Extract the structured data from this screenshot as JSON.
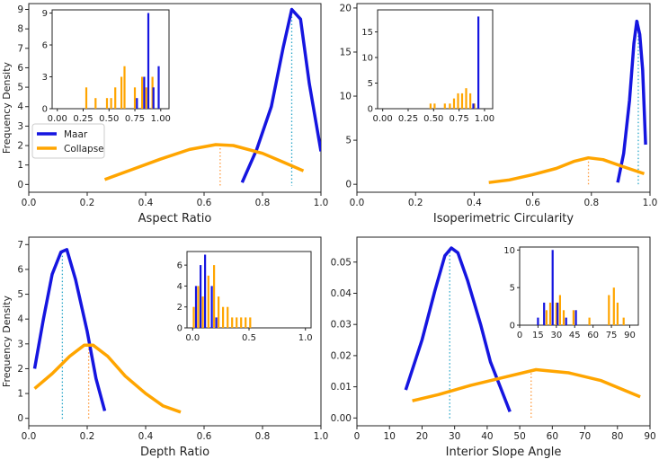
{
  "colors": {
    "maar": "#1515e0",
    "collapse": "#ffa500",
    "axis": "#222222",
    "maar_dotted": "#2aa7c9",
    "collapse_dotted": "#ff9a3c"
  },
  "shared_ylabel": "Frequency Density",
  "chart_data": [
    {
      "id": "aspect",
      "type": "line",
      "xlabel": "Aspect Ratio",
      "xlim": [
        0,
        1
      ],
      "ylim": [
        -0.4,
        9.3
      ],
      "xticks": [
        0.0,
        0.2,
        0.4,
        0.6,
        0.8,
        1.0
      ],
      "xtick_labels": [
        "0.0",
        "0.2",
        "0.4",
        "0.6",
        "0.8",
        "1.0"
      ],
      "yticks": [
        0,
        1,
        2,
        3,
        4,
        5,
        6,
        7,
        8,
        9
      ],
      "ytick_labels": [
        "0",
        "1",
        "2",
        "3",
        "4",
        "5",
        "6",
        "7",
        "8",
        "9"
      ],
      "legend": {
        "position": "middle-left",
        "entries": [
          "Maar",
          "Collapse"
        ]
      },
      "series": [
        {
          "name": "Maar",
          "x": [
            0.73,
            0.78,
            0.83,
            0.87,
            0.9,
            0.93,
            0.96,
            1.0
          ],
          "y": [
            0.1,
            1.8,
            4.0,
            7.0,
            9.0,
            8.5,
            5.2,
            1.7
          ]
        },
        {
          "name": "Collapse",
          "x": [
            0.26,
            0.35,
            0.45,
            0.55,
            0.64,
            0.7,
            0.8,
            0.87,
            0.94
          ],
          "y": [
            0.25,
            0.75,
            1.3,
            1.8,
            2.05,
            2.0,
            1.6,
            1.15,
            0.7
          ]
        }
      ],
      "means": [
        {
          "series": "Maar",
          "x": 0.9,
          "y": 9.0
        },
        {
          "series": "Collapse",
          "x": 0.655,
          "y": 2.05
        }
      ],
      "inset": {
        "xlim": [
          -0.05,
          1.08
        ],
        "ylim": [
          0,
          9.3
        ],
        "xticks": [
          0,
          0.25,
          0.5,
          0.75,
          1.0
        ],
        "xtick_labels": [
          "0.00",
          "0.25",
          "0.50",
          "0.75",
          "1.00"
        ],
        "yticks": [
          0,
          3,
          6,
          9
        ],
        "ytick_labels": [
          "0",
          "3",
          "6",
          "9"
        ],
        "bars": [
          {
            "series": "Collapse",
            "x": 0.28,
            "h": 2
          },
          {
            "series": "Collapse",
            "x": 0.37,
            "h": 1
          },
          {
            "series": "Collapse",
            "x": 0.48,
            "h": 1
          },
          {
            "series": "Collapse",
            "x": 0.52,
            "h": 1
          },
          {
            "series": "Collapse",
            "x": 0.56,
            "h": 2
          },
          {
            "series": "Collapse",
            "x": 0.62,
            "h": 3
          },
          {
            "series": "Collapse",
            "x": 0.65,
            "h": 4
          },
          {
            "series": "Collapse",
            "x": 0.75,
            "h": 2
          },
          {
            "series": "Collapse",
            "x": 0.82,
            "h": 3
          },
          {
            "series": "Collapse",
            "x": 0.86,
            "h": 2
          },
          {
            "series": "Collapse",
            "x": 0.92,
            "h": 3
          },
          {
            "series": "Maar",
            "x": 0.77,
            "h": 1
          },
          {
            "series": "Maar",
            "x": 0.84,
            "h": 3
          },
          {
            "series": "Maar",
            "x": 0.88,
            "h": 9
          },
          {
            "series": "Maar",
            "x": 0.93,
            "h": 2
          },
          {
            "series": "Maar",
            "x": 0.98,
            "h": 4
          }
        ]
      }
    },
    {
      "id": "circularity",
      "type": "line",
      "xlabel": "Isoperimetric Circularity",
      "xlim": [
        0,
        1
      ],
      "ylim": [
        -0.9,
        20.5
      ],
      "xticks": [
        0.0,
        0.2,
        0.4,
        0.6,
        0.8,
        1.0
      ],
      "xtick_labels": [
        "0.0",
        "0.2",
        "0.4",
        "0.6",
        "0.8",
        "1.0"
      ],
      "yticks": [
        0,
        5,
        10,
        15,
        20
      ],
      "ytick_labels": [
        "0",
        "5",
        "10",
        "15",
        "20"
      ],
      "series": [
        {
          "name": "Maar",
          "x": [
            0.89,
            0.91,
            0.93,
            0.945,
            0.955,
            0.965,
            0.975,
            0.985
          ],
          "y": [
            0.2,
            3.5,
            9.5,
            16.0,
            18.5,
            17.0,
            13.0,
            4.5
          ]
        },
        {
          "name": "Collapse",
          "x": [
            0.45,
            0.52,
            0.6,
            0.68,
            0.74,
            0.79,
            0.84,
            0.9,
            0.98
          ],
          "y": [
            0.2,
            0.5,
            1.1,
            1.8,
            2.6,
            3.0,
            2.8,
            2.1,
            1.2
          ]
        }
      ],
      "means": [
        {
          "series": "Maar",
          "x": 0.96,
          "y": 18.5
        },
        {
          "series": "Collapse",
          "x": 0.79,
          "y": 3.0
        }
      ],
      "inset": {
        "xlim": [
          -0.05,
          1.08
        ],
        "ylim": [
          0,
          19.3
        ],
        "xticks": [
          0,
          0.25,
          0.5,
          0.75,
          1.0
        ],
        "xtick_labels": [
          "0.00",
          "0.25",
          "0.50",
          "0.75",
          "1.00"
        ],
        "yticks": [
          0,
          5,
          10,
          15
        ],
        "ytick_labels": [
          "0",
          "5",
          "10",
          "15"
        ],
        "bars": [
          {
            "series": "Collapse",
            "x": 0.47,
            "h": 1
          },
          {
            "series": "Collapse",
            "x": 0.51,
            "h": 1
          },
          {
            "series": "Collapse",
            "x": 0.61,
            "h": 1
          },
          {
            "series": "Collapse",
            "x": 0.66,
            "h": 1
          },
          {
            "series": "Collapse",
            "x": 0.7,
            "h": 2
          },
          {
            "series": "Collapse",
            "x": 0.74,
            "h": 3
          },
          {
            "series": "Collapse",
            "x": 0.78,
            "h": 3
          },
          {
            "series": "Collapse",
            "x": 0.82,
            "h": 4
          },
          {
            "series": "Collapse",
            "x": 0.86,
            "h": 3
          },
          {
            "series": "Collapse",
            "x": 0.9,
            "h": 1
          },
          {
            "series": "Maar",
            "x": 0.89,
            "h": 1
          },
          {
            "series": "Maar",
            "x": 0.94,
            "h": 18
          }
        ]
      }
    },
    {
      "id": "depth",
      "type": "line",
      "xlabel": "Depth Ratio",
      "xlim": [
        0,
        1
      ],
      "ylim": [
        -0.3,
        7.3
      ],
      "xticks": [
        0.0,
        0.2,
        0.4,
        0.6,
        0.8,
        1.0
      ],
      "xtick_labels": [
        "0.0",
        "0.2",
        "0.4",
        "0.6",
        "0.8",
        "1.0"
      ],
      "yticks": [
        0,
        1,
        2,
        3,
        4,
        5,
        6,
        7
      ],
      "ytick_labels": [
        "0",
        "1",
        "2",
        "3",
        "4",
        "5",
        "6",
        "7"
      ],
      "series": [
        {
          "name": "Maar",
          "x": [
            0.02,
            0.05,
            0.08,
            0.11,
            0.13,
            0.16,
            0.2,
            0.23,
            0.26
          ],
          "y": [
            2.0,
            4.0,
            5.8,
            6.7,
            6.8,
            5.6,
            3.5,
            1.6,
            0.3
          ]
        },
        {
          "name": "Collapse",
          "x": [
            0.02,
            0.08,
            0.14,
            0.19,
            0.22,
            0.27,
            0.33,
            0.4,
            0.46,
            0.52
          ],
          "y": [
            1.2,
            1.8,
            2.5,
            2.95,
            2.95,
            2.5,
            1.7,
            1.0,
            0.5,
            0.25
          ]
        }
      ],
      "means": [
        {
          "series": "Maar",
          "x": 0.115,
          "y": 6.7
        },
        {
          "series": "Collapse",
          "x": 0.205,
          "y": 2.95
        }
      ],
      "inset": {
        "xlim": [
          -0.05,
          1.05
        ],
        "ylim": [
          0,
          7.3
        ],
        "xticks": [
          0,
          0.5,
          1.0
        ],
        "xtick_labels": [
          "0.0",
          "0.5",
          "1.0"
        ],
        "yticks": [
          0,
          2,
          4,
          6
        ],
        "ytick_labels": [
          "0",
          "2",
          "4",
          "6"
        ],
        "bars": [
          {
            "series": "Collapse",
            "x": 0.01,
            "h": 2
          },
          {
            "series": "Collapse",
            "x": 0.05,
            "h": 4
          },
          {
            "series": "Collapse",
            "x": 0.09,
            "h": 3
          },
          {
            "series": "Collapse",
            "x": 0.14,
            "h": 5
          },
          {
            "series": "Collapse",
            "x": 0.19,
            "h": 6
          },
          {
            "series": "Collapse",
            "x": 0.23,
            "h": 3
          },
          {
            "series": "Collapse",
            "x": 0.27,
            "h": 2
          },
          {
            "series": "Collapse",
            "x": 0.31,
            "h": 2
          },
          {
            "series": "Collapse",
            "x": 0.35,
            "h": 1
          },
          {
            "series": "Collapse",
            "x": 0.39,
            "h": 1
          },
          {
            "series": "Collapse",
            "x": 0.43,
            "h": 1
          },
          {
            "series": "Collapse",
            "x": 0.47,
            "h": 1
          },
          {
            "series": "Collapse",
            "x": 0.51,
            "h": 1
          },
          {
            "series": "Maar",
            "x": 0.03,
            "h": 4
          },
          {
            "series": "Maar",
            "x": 0.07,
            "h": 6
          },
          {
            "series": "Maar",
            "x": 0.11,
            "h": 7
          },
          {
            "series": "Maar",
            "x": 0.17,
            "h": 4
          },
          {
            "series": "Maar",
            "x": 0.21,
            "h": 1
          }
        ]
      }
    },
    {
      "id": "slope",
      "type": "line",
      "xlabel": "Interior Slope Angle",
      "xlim": [
        0,
        90
      ],
      "ylim": [
        -0.0025,
        0.058
      ],
      "xticks": [
        0,
        10,
        20,
        30,
        40,
        50,
        60,
        70,
        80,
        90
      ],
      "xtick_labels": [
        "0",
        "10",
        "20",
        "30",
        "40",
        "50",
        "60",
        "70",
        "80",
        "90"
      ],
      "yticks": [
        0.0,
        0.01,
        0.02,
        0.03,
        0.04,
        0.05
      ],
      "ytick_labels": [
        "0.00",
        "0.01",
        "0.02",
        "0.03",
        "0.04",
        "0.05"
      ],
      "series": [
        {
          "name": "Maar",
          "x": [
            15,
            20,
            24,
            27,
            29,
            31,
            34,
            38,
            41,
            44,
            47
          ],
          "y": [
            0.009,
            0.025,
            0.041,
            0.052,
            0.0545,
            0.053,
            0.044,
            0.03,
            0.018,
            0.01,
            0.002
          ]
        },
        {
          "name": "Collapse",
          "x": [
            17,
            25,
            35,
            45,
            55,
            65,
            75,
            87
          ],
          "y": [
            0.0055,
            0.0075,
            0.0105,
            0.013,
            0.0155,
            0.0145,
            0.012,
            0.0068
          ]
        }
      ],
      "means": [
        {
          "series": "Maar",
          "x": 28.5,
          "y": 0.0545
        },
        {
          "series": "Collapse",
          "x": 53.5,
          "y": 0.0155
        }
      ],
      "inset": {
        "xlim": [
          0,
          97
        ],
        "ylim": [
          0,
          10.4
        ],
        "xticks": [
          0,
          15,
          30,
          45,
          60,
          75,
          90
        ],
        "xtick_labels": [
          "0",
          "15",
          "30",
          "45",
          "60",
          "75",
          "90"
        ],
        "yticks": [
          0,
          5,
          10
        ],
        "ytick_labels": [
          "0",
          "5",
          "10"
        ],
        "bars": [
          {
            "series": "Collapse",
            "x": 22,
            "h": 2
          },
          {
            "series": "Collapse",
            "x": 25,
            "h": 3
          },
          {
            "series": "Collapse",
            "x": 30,
            "h": 3
          },
          {
            "series": "Collapse",
            "x": 33,
            "h": 4
          },
          {
            "series": "Collapse",
            "x": 36,
            "h": 2
          },
          {
            "series": "Collapse",
            "x": 44,
            "h": 2
          },
          {
            "series": "Collapse",
            "x": 57,
            "h": 1
          },
          {
            "series": "Collapse",
            "x": 73,
            "h": 4
          },
          {
            "series": "Collapse",
            "x": 77,
            "h": 5
          },
          {
            "series": "Collapse",
            "x": 80,
            "h": 3
          },
          {
            "series": "Collapse",
            "x": 85,
            "h": 1
          },
          {
            "series": "Maar",
            "x": 15,
            "h": 1
          },
          {
            "series": "Maar",
            "x": 20,
            "h": 3
          },
          {
            "series": "Maar",
            "x": 27,
            "h": 10
          },
          {
            "series": "Maar",
            "x": 31,
            "h": 3
          },
          {
            "series": "Maar",
            "x": 38,
            "h": 1
          },
          {
            "series": "Maar",
            "x": 46,
            "h": 2
          }
        ]
      }
    }
  ]
}
